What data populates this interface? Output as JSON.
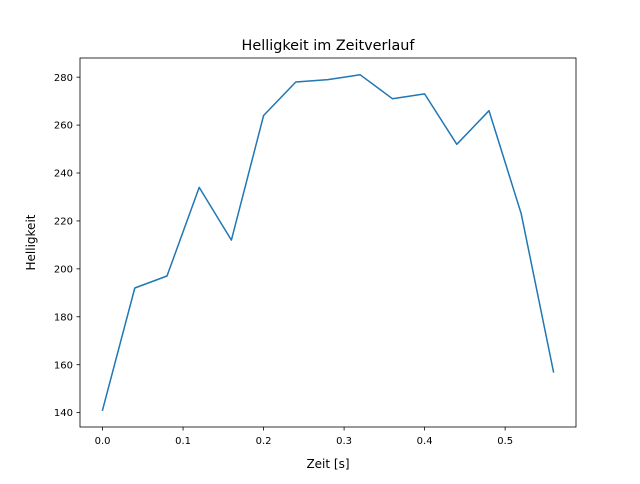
{
  "chart_data": {
    "type": "line",
    "title": "Helligkeit im Zeitverlauf",
    "xlabel": "Zeit [s]",
    "ylabel": "Helligkeit",
    "xlim": [
      -0.028,
      0.588
    ],
    "ylim": [
      134,
      288
    ],
    "xticks": [
      0.0,
      0.1,
      0.2,
      0.3,
      0.4,
      0.5
    ],
    "xtick_labels": [
      "0.0",
      "0.1",
      "0.2",
      "0.3",
      "0.4",
      "0.5"
    ],
    "yticks": [
      140,
      160,
      180,
      200,
      220,
      240,
      260,
      280
    ],
    "ytick_labels": [
      "140",
      "160",
      "180",
      "200",
      "220",
      "240",
      "260",
      "280"
    ],
    "grid": false,
    "series": [
      {
        "name": "Helligkeit",
        "color": "#1f77b4",
        "x": [
          0.0,
          0.04,
          0.08,
          0.12,
          0.16,
          0.2,
          0.24,
          0.28,
          0.32,
          0.36,
          0.4,
          0.44,
          0.48,
          0.52,
          0.56
        ],
        "y": [
          141,
          192,
          197,
          234,
          212,
          264,
          278,
          279,
          281,
          271,
          273,
          252,
          266,
          223,
          157
        ]
      }
    ]
  }
}
